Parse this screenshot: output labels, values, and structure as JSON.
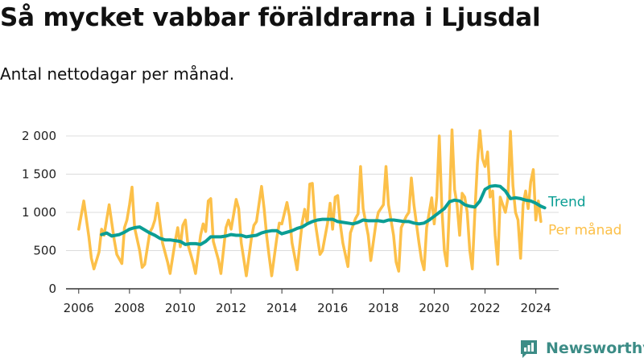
{
  "title": "Så mycket vabbar föräldrarna i Ljusdal",
  "subtitle": "Antal nettodagar per månad.",
  "brand": "Newsworthy",
  "colors": {
    "monthly": "#fcc049",
    "trend": "#0b9e94",
    "grid": "#dcdcdc",
    "axis": "#333333",
    "brand": "#3c8c86"
  },
  "chart_data": {
    "type": "line",
    "x_ticks": [
      "2006",
      "2008",
      "2010",
      "2012",
      "2014",
      "2016",
      "2018",
      "2020",
      "2022",
      "2024"
    ],
    "y_ticks": [
      "0",
      "500",
      "1 000",
      "1 500",
      "2 000"
    ],
    "ylim": [
      0,
      2000
    ],
    "xlim": [
      2005.5,
      2024.9
    ],
    "grid": true,
    "legend": "end-of-line labels, right",
    "series": [
      {
        "name": "Per månad",
        "points": [
          [
            2006.0,
            780
          ],
          [
            2006.2,
            1150
          ],
          [
            2006.4,
            680
          ],
          [
            2006.5,
            400
          ],
          [
            2006.6,
            260
          ],
          [
            2006.8,
            480
          ],
          [
            2006.9,
            780
          ],
          [
            2007.0,
            700
          ],
          [
            2007.2,
            1100
          ],
          [
            2007.4,
            640
          ],
          [
            2007.5,
            450
          ],
          [
            2007.7,
            330
          ],
          [
            2007.8,
            800
          ],
          [
            2007.9,
            900
          ],
          [
            2008.0,
            1100
          ],
          [
            2008.1,
            1330
          ],
          [
            2008.2,
            800
          ],
          [
            2008.4,
            500
          ],
          [
            2008.5,
            280
          ],
          [
            2008.6,
            320
          ],
          [
            2008.8,
            740
          ],
          [
            2008.9,
            800
          ],
          [
            2009.0,
            900
          ],
          [
            2009.1,
            1120
          ],
          [
            2009.3,
            600
          ],
          [
            2009.5,
            350
          ],
          [
            2009.6,
            200
          ],
          [
            2009.8,
            620
          ],
          [
            2009.9,
            800
          ],
          [
            2010.0,
            550
          ],
          [
            2010.1,
            830
          ],
          [
            2010.2,
            900
          ],
          [
            2010.3,
            580
          ],
          [
            2010.5,
            350
          ],
          [
            2010.6,
            200
          ],
          [
            2010.8,
            700
          ],
          [
            2010.9,
            850
          ],
          [
            2011.0,
            750
          ],
          [
            2011.1,
            1150
          ],
          [
            2011.2,
            1180
          ],
          [
            2011.3,
            620
          ],
          [
            2011.5,
            380
          ],
          [
            2011.6,
            200
          ],
          [
            2011.8,
            800
          ],
          [
            2011.9,
            900
          ],
          [
            2012.0,
            780
          ],
          [
            2012.2,
            1170
          ],
          [
            2012.3,
            1050
          ],
          [
            2012.4,
            600
          ],
          [
            2012.5,
            390
          ],
          [
            2012.6,
            170
          ],
          [
            2012.8,
            660
          ],
          [
            2012.9,
            830
          ],
          [
            2013.0,
            880
          ],
          [
            2013.2,
            1340
          ],
          [
            2013.3,
            1050
          ],
          [
            2013.4,
            700
          ],
          [
            2013.5,
            420
          ],
          [
            2013.6,
            170
          ],
          [
            2013.8,
            660
          ],
          [
            2013.9,
            860
          ],
          [
            2014.0,
            850
          ],
          [
            2014.2,
            1130
          ],
          [
            2014.3,
            950
          ],
          [
            2014.4,
            600
          ],
          [
            2014.5,
            430
          ],
          [
            2014.6,
            250
          ],
          [
            2014.8,
            870
          ],
          [
            2014.9,
            1040
          ],
          [
            2015.0,
            860
          ],
          [
            2015.1,
            1370
          ],
          [
            2015.2,
            1380
          ],
          [
            2015.3,
            900
          ],
          [
            2015.5,
            450
          ],
          [
            2015.6,
            500
          ],
          [
            2015.8,
            860
          ],
          [
            2015.9,
            1120
          ],
          [
            2016.0,
            780
          ],
          [
            2016.1,
            1200
          ],
          [
            2016.2,
            1220
          ],
          [
            2016.3,
            850
          ],
          [
            2016.4,
            600
          ],
          [
            2016.6,
            290
          ],
          [
            2016.7,
            730
          ],
          [
            2016.9,
            920
          ],
          [
            2017.0,
            980
          ],
          [
            2017.1,
            1600
          ],
          [
            2017.2,
            1050
          ],
          [
            2017.4,
            700
          ],
          [
            2017.5,
            370
          ],
          [
            2017.7,
            850
          ],
          [
            2017.8,
            1000
          ],
          [
            2018.0,
            1100
          ],
          [
            2018.1,
            1600
          ],
          [
            2018.2,
            1100
          ],
          [
            2018.4,
            700
          ],
          [
            2018.5,
            350
          ],
          [
            2018.6,
            230
          ],
          [
            2018.7,
            800
          ],
          [
            2018.9,
            950
          ],
          [
            2019.0,
            1000
          ],
          [
            2019.1,
            1450
          ],
          [
            2019.2,
            1100
          ],
          [
            2019.4,
            600
          ],
          [
            2019.5,
            380
          ],
          [
            2019.6,
            250
          ],
          [
            2019.7,
            800
          ],
          [
            2019.9,
            1190
          ],
          [
            2020.0,
            850
          ],
          [
            2020.1,
            1200
          ],
          [
            2020.2,
            2000
          ],
          [
            2020.3,
            1050
          ],
          [
            2020.4,
            500
          ],
          [
            2020.5,
            300
          ],
          [
            2020.6,
            1100
          ],
          [
            2020.7,
            2080
          ],
          [
            2020.8,
            1300
          ],
          [
            2020.9,
            1100
          ],
          [
            2021.0,
            700
          ],
          [
            2021.1,
            1250
          ],
          [
            2021.2,
            1200
          ],
          [
            2021.3,
            1000
          ],
          [
            2021.4,
            500
          ],
          [
            2021.5,
            260
          ],
          [
            2021.6,
            1000
          ],
          [
            2021.7,
            1650
          ],
          [
            2021.8,
            2070
          ],
          [
            2021.9,
            1700
          ],
          [
            2022.0,
            1600
          ],
          [
            2022.1,
            1790
          ],
          [
            2022.2,
            1200
          ],
          [
            2022.3,
            1280
          ],
          [
            2022.4,
            700
          ],
          [
            2022.5,
            320
          ],
          [
            2022.6,
            1200
          ],
          [
            2022.8,
            1000
          ],
          [
            2022.9,
            1180
          ],
          [
            2023.0,
            2060
          ],
          [
            2023.1,
            1350
          ],
          [
            2023.2,
            1000
          ],
          [
            2023.3,
            900
          ],
          [
            2023.4,
            400
          ],
          [
            2023.5,
            1100
          ],
          [
            2023.6,
            1280
          ],
          [
            2023.7,
            1050
          ],
          [
            2023.8,
            1400
          ],
          [
            2023.9,
            1560
          ],
          [
            2024.0,
            900
          ],
          [
            2024.1,
            1150
          ],
          [
            2024.2,
            880
          ]
        ]
      },
      {
        "name": "Trend",
        "points": [
          [
            2006.9,
            710
          ],
          [
            2007.1,
            730
          ],
          [
            2007.3,
            690
          ],
          [
            2007.6,
            710
          ],
          [
            2007.8,
            740
          ],
          [
            2008.0,
            780
          ],
          [
            2008.2,
            800
          ],
          [
            2008.4,
            810
          ],
          [
            2008.6,
            770
          ],
          [
            2008.8,
            730
          ],
          [
            2009.0,
            700
          ],
          [
            2009.2,
            660
          ],
          [
            2009.4,
            640
          ],
          [
            2009.6,
            640
          ],
          [
            2009.8,
            630
          ],
          [
            2010.0,
            620
          ],
          [
            2010.2,
            580
          ],
          [
            2010.4,
            590
          ],
          [
            2010.6,
            590
          ],
          [
            2010.8,
            580
          ],
          [
            2011.0,
            620
          ],
          [
            2011.2,
            680
          ],
          [
            2011.4,
            680
          ],
          [
            2011.6,
            680
          ],
          [
            2011.8,
            690
          ],
          [
            2012.0,
            710
          ],
          [
            2012.2,
            700
          ],
          [
            2012.4,
            700
          ],
          [
            2012.6,
            680
          ],
          [
            2012.8,
            690
          ],
          [
            2013.0,
            700
          ],
          [
            2013.2,
            730
          ],
          [
            2013.4,
            750
          ],
          [
            2013.6,
            760
          ],
          [
            2013.8,
            760
          ],
          [
            2014.0,
            720
          ],
          [
            2014.2,
            740
          ],
          [
            2014.4,
            760
          ],
          [
            2014.6,
            790
          ],
          [
            2014.8,
            810
          ],
          [
            2015.0,
            850
          ],
          [
            2015.2,
            880
          ],
          [
            2015.4,
            900
          ],
          [
            2015.6,
            910
          ],
          [
            2015.8,
            910
          ],
          [
            2016.0,
            910
          ],
          [
            2016.2,
            880
          ],
          [
            2016.4,
            870
          ],
          [
            2016.6,
            860
          ],
          [
            2016.8,
            850
          ],
          [
            2017.0,
            870
          ],
          [
            2017.2,
            900
          ],
          [
            2017.4,
            890
          ],
          [
            2017.6,
            890
          ],
          [
            2017.8,
            890
          ],
          [
            2018.0,
            880
          ],
          [
            2018.2,
            900
          ],
          [
            2018.4,
            900
          ],
          [
            2018.6,
            890
          ],
          [
            2018.8,
            880
          ],
          [
            2019.0,
            880
          ],
          [
            2019.2,
            860
          ],
          [
            2019.4,
            850
          ],
          [
            2019.6,
            860
          ],
          [
            2019.8,
            900
          ],
          [
            2020.0,
            950
          ],
          [
            2020.2,
            1000
          ],
          [
            2020.4,
            1050
          ],
          [
            2020.6,
            1140
          ],
          [
            2020.8,
            1160
          ],
          [
            2021.0,
            1150
          ],
          [
            2021.2,
            1100
          ],
          [
            2021.4,
            1080
          ],
          [
            2021.6,
            1070
          ],
          [
            2021.8,
            1150
          ],
          [
            2022.0,
            1300
          ],
          [
            2022.2,
            1340
          ],
          [
            2022.4,
            1350
          ],
          [
            2022.6,
            1340
          ],
          [
            2022.8,
            1280
          ],
          [
            2023.0,
            1180
          ],
          [
            2023.2,
            1190
          ],
          [
            2023.4,
            1180
          ],
          [
            2023.6,
            1160
          ],
          [
            2023.8,
            1150
          ],
          [
            2024.0,
            1120
          ],
          [
            2024.2,
            1080
          ],
          [
            2024.35,
            1060
          ]
        ]
      }
    ]
  }
}
